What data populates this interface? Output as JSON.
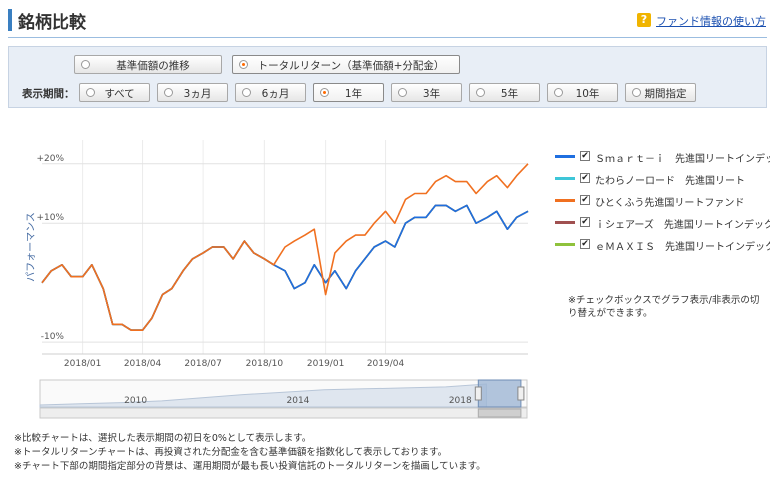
{
  "header": {
    "title": "銘柄比較",
    "help_icon": "?",
    "help_link": "ファンド情報の使い方"
  },
  "mode_buttons": [
    {
      "label": "基準価額の推移",
      "selected": false
    },
    {
      "label": "トータルリターン（基準価額+分配金）",
      "selected": true
    }
  ],
  "period": {
    "label": "表示期間：",
    "options": [
      {
        "label": "すべて",
        "selected": false
      },
      {
        "label": "3ヵ月",
        "selected": false
      },
      {
        "label": "6ヵ月",
        "selected": false
      },
      {
        "label": "1年",
        "selected": true
      },
      {
        "label": "3年",
        "selected": false
      },
      {
        "label": "5年",
        "selected": false
      },
      {
        "label": "10年",
        "selected": false
      },
      {
        "label": "期間指定",
        "selected": false
      }
    ]
  },
  "legend_note": "※チェックボックスでグラフ表示/非表示の切り替えができます。",
  "footnotes": [
    "※比較チャートは、選択した表示期間の初日を0%として表示します。",
    "※トータルリターンチャートは、再投資された分配金を含む基準価額を指数化して表示しております。",
    "※チャート下部の期間指定部分の背景は、運用期間が最も長い投資信託のトータルリターンを描画しています。"
  ],
  "chart_data": {
    "type": "line",
    "ylabel": "パフォーマンス",
    "ylim": [
      -12,
      24
    ],
    "yticks": [
      {
        "value": 20,
        "label": "+20%"
      },
      {
        "value": 10,
        "label": "+10%"
      },
      {
        "value": -10,
        "label": "-10%"
      }
    ],
    "xticks": [
      "2018/01",
      "2018/04",
      "2018/07",
      "2018/10",
      "2019/01",
      "2019/04"
    ],
    "x_dates": [
      "2017-11-01",
      "2017-11-15",
      "2017-12-01",
      "2017-12-15",
      "2018-01-01",
      "2018-01-15",
      "2018-02-01",
      "2018-02-15",
      "2018-03-01",
      "2018-03-15",
      "2018-04-01",
      "2018-04-15",
      "2018-05-01",
      "2018-05-15",
      "2018-06-01",
      "2018-06-15",
      "2018-07-01",
      "2018-07-15",
      "2018-08-01",
      "2018-08-15",
      "2018-09-01",
      "2018-09-15",
      "2018-10-01",
      "2018-10-15",
      "2018-11-01",
      "2018-11-15",
      "2018-12-01",
      "2018-12-15",
      "2019-01-01",
      "2019-01-15",
      "2019-02-01",
      "2019-02-15",
      "2019-03-01",
      "2019-03-15",
      "2019-04-01",
      "2019-04-15",
      "2019-05-01",
      "2019-05-15",
      "2019-06-01",
      "2019-06-15",
      "2019-07-01",
      "2019-07-15",
      "2019-08-01",
      "2019-08-15",
      "2019-09-01",
      "2019-09-15",
      "2019-10-01",
      "2019-10-15",
      "2019-11-01"
    ],
    "series": [
      {
        "name": "Ｓｍａｒｔ－ｉ　先進国リートインデックス",
        "color": "#1f6fe0",
        "checked": true,
        "values": [
          0,
          2,
          3,
          1,
          1,
          3,
          -1,
          -7,
          -7,
          -8,
          -8,
          -6,
          -2,
          -1,
          2,
          4,
          5,
          6,
          6,
          4,
          7,
          5,
          4,
          3,
          2,
          -1,
          0,
          3,
          0,
          2,
          -1,
          2,
          4,
          6,
          7,
          6,
          10,
          11,
          11,
          13,
          13,
          12,
          13,
          10,
          11,
          12,
          9,
          11,
          12
        ]
      },
      {
        "name": "たわらノーロード　先進国リート",
        "color": "#3ec6d8",
        "checked": true,
        "values": [
          0,
          2,
          3,
          1,
          1,
          3,
          -1,
          -7,
          -7,
          -8,
          -8,
          -6,
          -2,
          -1,
          2,
          4,
          5,
          6,
          6,
          4,
          7,
          5,
          4,
          3,
          2,
          -1,
          0,
          3,
          0,
          2,
          -1,
          2,
          4,
          6,
          7,
          6,
          10,
          11,
          11,
          13,
          13,
          12,
          13,
          10,
          11,
          12,
          9,
          11,
          12
        ]
      },
      {
        "name": "ひとくふう先進国リートファンド",
        "color": "#f07020",
        "checked": true,
        "values": [
          0,
          2,
          3,
          1,
          1,
          3,
          -1,
          -7,
          -7,
          -8,
          -8,
          -6,
          -2,
          -1,
          2,
          4,
          5,
          6,
          6,
          4,
          7,
          5,
          4,
          3,
          6,
          7,
          8,
          9,
          -2,
          5,
          7,
          8,
          8,
          10,
          12,
          10,
          14,
          15,
          15,
          17,
          18,
          17,
          17,
          15,
          17,
          18,
          16,
          18,
          20
        ]
      },
      {
        "name": "ｉシェアーズ　先進国リートインデックス",
        "color": "#a05050",
        "checked": true,
        "values": [
          0,
          2,
          3,
          1,
          1,
          3,
          -1,
          -7,
          -7,
          -8,
          -8,
          -6,
          -2,
          -1,
          2,
          4,
          5,
          6,
          6,
          4,
          7,
          5,
          4,
          3,
          2,
          -1,
          0,
          3,
          0,
          2,
          -1,
          2,
          4,
          6,
          7,
          6,
          10,
          11,
          11,
          13,
          13,
          12,
          13,
          10,
          11,
          12,
          9,
          11,
          12
        ]
      },
      {
        "name": "ｅＭＡＸＩＳ　先進国リートインデックス",
        "color": "#8fc23c",
        "checked": true,
        "values": [
          0,
          2,
          3,
          1,
          1,
          3,
          -1,
          -7,
          -7,
          -8,
          -8,
          -6,
          -2,
          -1,
          2,
          4,
          5,
          6,
          6,
          4,
          7,
          5,
          4,
          3,
          2,
          -1,
          0,
          3,
          0,
          2,
          -1,
          2,
          4,
          6,
          7,
          6,
          10,
          11,
          11,
          13,
          13,
          12,
          13,
          10,
          11,
          12,
          9,
          11,
          12
        ]
      }
    ],
    "navigator": {
      "labels": [
        "2010",
        "2014",
        "2018"
      ],
      "x_years": [
        2008,
        2009,
        2010,
        2011,
        2012,
        2013,
        2014,
        2015,
        2016,
        2017,
        2018,
        2019
      ],
      "values": [
        -5,
        0,
        5,
        12,
        25,
        38,
        48,
        58,
        62,
        66,
        70,
        82
      ],
      "range": [
        2018.8,
        2019.85
      ]
    }
  }
}
